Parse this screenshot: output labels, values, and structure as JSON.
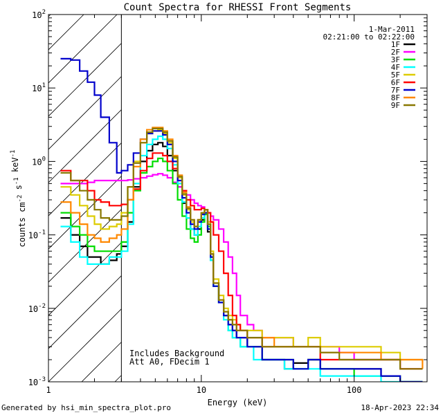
{
  "chart_data": {
    "type": "line",
    "title": "Count Spectra for RHESSI Front Segments",
    "xlabel": "Energy (keV)",
    "ylabel": "counts cm^-2 s^-1 keV^-1",
    "xscale": "log",
    "yscale": "log",
    "xlim": [
      1,
      300
    ],
    "ylim": [
      0.001,
      100
    ],
    "x_tick_labels": [
      "1",
      "10",
      "100"
    ],
    "y_tick_labels": [
      "10^-3",
      "10^-2",
      "10^-1",
      "10^0",
      "10^1",
      "10^2"
    ],
    "date": "1-Mar-2011",
    "time_range": "02:21:00 to 02:22:00",
    "shaded_region_keV": [
      1,
      3
    ],
    "annotations": [
      "Includes Background",
      "Att A0, FDecim 1"
    ],
    "series": [
      {
        "name": "1F",
        "color": "#000000",
        "x": [
          1.2,
          1.4,
          1.6,
          1.8,
          2.0,
          2.2,
          2.5,
          2.8,
          3.0,
          3.3,
          3.6,
          4.0,
          4.4,
          4.8,
          5.2,
          5.6,
          6.0,
          6.5,
          7.0,
          7.5,
          8.0,
          8.5,
          9.0,
          9.5,
          10.0,
          10.5,
          11.0,
          11.5,
          12.0,
          13.0,
          14.0,
          15.0,
          16.0,
          17.0,
          18.0,
          20.0,
          22.0,
          25.0,
          30.0,
          35.0,
          40.0,
          50.0,
          60.0,
          80.0,
          100.0,
          150.0,
          200.0,
          280.0
        ],
        "values": [
          0.17,
          0.1,
          0.07,
          0.05,
          0.05,
          0.04,
          0.045,
          0.055,
          0.07,
          0.15,
          0.45,
          1.0,
          1.4,
          1.7,
          1.8,
          1.6,
          1.2,
          0.75,
          0.45,
          0.27,
          0.17,
          0.12,
          0.1,
          0.12,
          0.16,
          0.2,
          0.11,
          0.045,
          0.02,
          0.012,
          0.008,
          0.006,
          0.005,
          0.004,
          0.004,
          0.003,
          0.003,
          0.002,
          0.002,
          0.0015,
          0.0018,
          0.002,
          0.0015,
          0.0015,
          0.0015,
          0.0012,
          0.001,
          0.001
        ]
      },
      {
        "name": "2F",
        "color": "#ff00ff",
        "x": [
          1.2,
          1.4,
          1.6,
          1.8,
          2.0,
          2.2,
          2.5,
          2.8,
          3.0,
          3.3,
          3.6,
          4.0,
          4.4,
          4.8,
          5.2,
          5.6,
          6.0,
          6.5,
          7.0,
          7.5,
          8.0,
          8.5,
          9.0,
          9.5,
          10.0,
          10.5,
          11.0,
          11.5,
          12.0,
          13.0,
          14.0,
          15.0,
          16.0,
          17.0,
          18.0,
          20.0,
          22.0,
          25.0,
          30.0,
          35.0,
          40.0,
          50.0,
          60.0,
          80.0,
          100.0,
          150.0,
          200.0,
          280.0
        ],
        "values": [
          0.5,
          0.5,
          0.5,
          0.52,
          0.55,
          0.55,
          0.55,
          0.55,
          0.55,
          0.56,
          0.58,
          0.6,
          0.63,
          0.66,
          0.68,
          0.65,
          0.6,
          0.52,
          0.45,
          0.4,
          0.35,
          0.3,
          0.27,
          0.25,
          0.24,
          0.22,
          0.2,
          0.18,
          0.16,
          0.12,
          0.08,
          0.05,
          0.03,
          0.015,
          0.008,
          0.006,
          0.005,
          0.004,
          0.004,
          0.004,
          0.003,
          0.003,
          0.003,
          0.0025,
          0.002,
          0.002,
          0.0015,
          0.0015
        ]
      },
      {
        "name": "3F",
        "color": "#00dd00",
        "x": [
          1.2,
          1.4,
          1.6,
          1.8,
          2.0,
          2.2,
          2.5,
          2.8,
          3.0,
          3.3,
          3.6,
          4.0,
          4.4,
          4.8,
          5.2,
          5.6,
          6.0,
          6.5,
          7.0,
          7.5,
          8.0,
          8.5,
          9.0,
          9.5,
          10.0,
          10.5,
          11.0,
          11.5,
          12.0,
          13.0,
          14.0,
          15.0,
          16.0,
          17.0,
          18.0,
          20.0,
          22.0,
          25.0,
          30.0,
          35.0,
          40.0,
          50.0,
          60.0,
          80.0,
          100.0,
          150.0,
          200.0,
          280.0
        ],
        "values": [
          0.2,
          0.13,
          0.1,
          0.07,
          0.06,
          0.06,
          0.06,
          0.06,
          0.08,
          0.2,
          0.4,
          0.7,
          0.85,
          1.0,
          1.1,
          1.0,
          0.75,
          0.5,
          0.3,
          0.18,
          0.12,
          0.09,
          0.08,
          0.1,
          0.15,
          0.19,
          0.13,
          0.05,
          0.02,
          0.012,
          0.008,
          0.005,
          0.004,
          0.004,
          0.003,
          0.003,
          0.003,
          0.002,
          0.002,
          0.002,
          0.0015,
          0.002,
          0.0015,
          0.0015,
          0.0012,
          0.0012,
          0.001,
          0.001
        ]
      },
      {
        "name": "4F",
        "color": "#00ffff",
        "x": [
          1.2,
          1.4,
          1.6,
          1.8,
          2.0,
          2.2,
          2.5,
          2.8,
          3.0,
          3.3,
          3.6,
          4.0,
          4.4,
          4.8,
          5.2,
          5.6,
          6.0,
          6.5,
          7.0,
          7.5,
          8.0,
          8.5,
          9.0,
          9.5,
          10.0,
          10.5,
          11.0,
          11.5,
          12.0,
          13.0,
          14.0,
          15.0,
          16.0,
          17.0,
          18.0,
          20.0,
          22.0,
          25.0,
          30.0,
          35.0,
          40.0,
          50.0,
          60.0,
          80.0,
          100.0,
          150.0,
          200.0,
          280.0
        ],
        "values": [
          0.13,
          0.08,
          0.05,
          0.04,
          0.04,
          0.04,
          0.05,
          0.05,
          0.06,
          0.14,
          0.5,
          1.2,
          1.7,
          2.0,
          2.2,
          2.0,
          1.5,
          0.9,
          0.5,
          0.28,
          0.17,
          0.12,
          0.1,
          0.13,
          0.17,
          0.2,
          0.12,
          0.045,
          0.02,
          0.012,
          0.007,
          0.005,
          0.004,
          0.004,
          0.003,
          0.003,
          0.002,
          0.002,
          0.002,
          0.0015,
          0.0015,
          0.0015,
          0.0012,
          0.0012,
          0.0012,
          0.001,
          0.001,
          0.001
        ]
      },
      {
        "name": "5F",
        "color": "#ddcc00",
        "x": [
          1.2,
          1.4,
          1.6,
          1.8,
          2.0,
          2.2,
          2.5,
          2.8,
          3.0,
          3.3,
          3.6,
          4.0,
          4.4,
          4.8,
          5.2,
          5.6,
          6.0,
          6.5,
          7.0,
          7.5,
          8.0,
          8.5,
          9.0,
          9.5,
          10.0,
          10.5,
          11.0,
          11.5,
          12.0,
          13.0,
          14.0,
          15.0,
          16.0,
          17.0,
          18.0,
          20.0,
          22.0,
          25.0,
          30.0,
          35.0,
          40.0,
          50.0,
          60.0,
          80.0,
          100.0,
          150.0,
          200.0,
          280.0
        ],
        "values": [
          0.45,
          0.35,
          0.25,
          0.18,
          0.14,
          0.12,
          0.13,
          0.14,
          0.2,
          0.45,
          1.0,
          1.8,
          2.4,
          2.6,
          2.7,
          2.4,
          1.8,
          1.1,
          0.6,
          0.35,
          0.22,
          0.15,
          0.13,
          0.16,
          0.2,
          0.22,
          0.15,
          0.06,
          0.025,
          0.015,
          0.01,
          0.008,
          0.007,
          0.006,
          0.005,
          0.005,
          0.005,
          0.004,
          0.004,
          0.004,
          0.003,
          0.004,
          0.003,
          0.003,
          0.003,
          0.0025,
          0.002,
          0.002
        ]
      },
      {
        "name": "6F",
        "color": "#ff0000",
        "x": [
          1.2,
          1.4,
          1.6,
          1.8,
          2.0,
          2.2,
          2.5,
          2.8,
          3.0,
          3.3,
          3.6,
          4.0,
          4.4,
          4.8,
          5.2,
          5.6,
          6.0,
          6.5,
          7.0,
          7.5,
          8.0,
          8.5,
          9.0,
          9.5,
          10.0,
          10.5,
          11.0,
          11.5,
          12.0,
          13.0,
          14.0,
          15.0,
          16.0,
          17.0,
          18.0,
          20.0,
          22.0,
          25.0,
          30.0,
          35.0,
          40.0,
          50.0,
          60.0,
          80.0,
          100.0,
          150.0,
          200.0,
          280.0
        ],
        "values": [
          0.75,
          0.55,
          0.55,
          0.4,
          0.3,
          0.28,
          0.25,
          0.25,
          0.26,
          0.3,
          0.42,
          0.75,
          1.1,
          1.3,
          1.3,
          1.2,
          1.0,
          0.8,
          0.55,
          0.4,
          0.3,
          0.25,
          0.22,
          0.22,
          0.23,
          0.22,
          0.2,
          0.15,
          0.1,
          0.06,
          0.03,
          0.015,
          0.008,
          0.006,
          0.005,
          0.004,
          0.004,
          0.003,
          0.003,
          0.003,
          0.003,
          0.003,
          0.002,
          0.002,
          0.002,
          0.002,
          0.0015,
          0.0015
        ]
      },
      {
        "name": "7F",
        "color": "#0000cc",
        "x": [
          1.2,
          1.4,
          1.6,
          1.8,
          2.0,
          2.2,
          2.5,
          2.8,
          3.0,
          3.3,
          3.6,
          4.0,
          4.4,
          4.8,
          5.2,
          5.6,
          6.0,
          6.5,
          7.0,
          7.5,
          8.0,
          8.5,
          9.0,
          9.5,
          10.0,
          10.5,
          11.0,
          11.5,
          12.0,
          13.0,
          14.0,
          15.0,
          16.0,
          17.0,
          18.0,
          20.0,
          22.0,
          25.0,
          30.0,
          35.0,
          40.0,
          50.0,
          60.0,
          80.0,
          100.0,
          150.0,
          200.0,
          280.0
        ],
        "values": [
          25,
          24,
          17,
          12,
          8,
          4,
          1.8,
          0.7,
          0.75,
          0.9,
          1.3,
          2.0,
          2.4,
          2.6,
          2.6,
          2.3,
          1.7,
          1.0,
          0.55,
          0.32,
          0.2,
          0.14,
          0.12,
          0.15,
          0.19,
          0.2,
          0.12,
          0.05,
          0.02,
          0.012,
          0.008,
          0.006,
          0.005,
          0.004,
          0.004,
          0.003,
          0.003,
          0.002,
          0.002,
          0.002,
          0.0015,
          0.002,
          0.0015,
          0.0015,
          0.0015,
          0.0012,
          0.001,
          0.001
        ]
      },
      {
        "name": "8F",
        "color": "#ff8800",
        "x": [
          1.2,
          1.4,
          1.6,
          1.8,
          2.0,
          2.2,
          2.5,
          2.8,
          3.0,
          3.3,
          3.6,
          4.0,
          4.4,
          4.8,
          5.2,
          5.6,
          6.0,
          6.5,
          7.0,
          7.5,
          8.0,
          8.5,
          9.0,
          9.5,
          10.0,
          10.5,
          11.0,
          11.5,
          12.0,
          13.0,
          14.0,
          15.0,
          16.0,
          17.0,
          18.0,
          20.0,
          22.0,
          25.0,
          30.0,
          35.0,
          40.0,
          50.0,
          60.0,
          80.0,
          100.0,
          150.0,
          200.0,
          280.0
        ],
        "values": [
          0.28,
          0.2,
          0.14,
          0.1,
          0.09,
          0.08,
          0.09,
          0.1,
          0.12,
          0.3,
          0.85,
          2.0,
          2.7,
          2.9,
          2.9,
          2.6,
          2.0,
          1.2,
          0.65,
          0.38,
          0.24,
          0.16,
          0.13,
          0.16,
          0.2,
          0.22,
          0.14,
          0.055,
          0.022,
          0.013,
          0.009,
          0.007,
          0.006,
          0.005,
          0.005,
          0.004,
          0.004,
          0.004,
          0.003,
          0.003,
          0.003,
          0.003,
          0.0025,
          0.0025,
          0.0025,
          0.002,
          0.002,
          0.0015
        ]
      },
      {
        "name": "9F",
        "color": "#887700",
        "x": [
          1.2,
          1.4,
          1.6,
          1.8,
          2.0,
          2.2,
          2.5,
          2.8,
          3.0,
          3.3,
          3.6,
          4.0,
          4.4,
          4.8,
          5.2,
          5.6,
          6.0,
          6.5,
          7.0,
          7.5,
          8.0,
          8.5,
          9.0,
          9.5,
          10.0,
          10.5,
          11.0,
          11.5,
          12.0,
          13.0,
          14.0,
          15.0,
          16.0,
          17.0,
          18.0,
          20.0,
          22.0,
          25.0,
          30.0,
          35.0,
          40.0,
          50.0,
          60.0,
          80.0,
          100.0,
          150.0,
          200.0,
          280.0
        ],
        "values": [
          0.7,
          0.55,
          0.4,
          0.3,
          0.22,
          0.17,
          0.16,
          0.16,
          0.18,
          0.45,
          0.95,
          1.8,
          2.5,
          2.8,
          2.8,
          2.5,
          1.9,
          1.15,
          0.62,
          0.36,
          0.23,
          0.16,
          0.13,
          0.16,
          0.2,
          0.22,
          0.14,
          0.055,
          0.022,
          0.013,
          0.009,
          0.007,
          0.006,
          0.005,
          0.005,
          0.004,
          0.004,
          0.003,
          0.003,
          0.003,
          0.003,
          0.003,
          0.0025,
          0.002,
          0.002,
          0.002,
          0.0015,
          0.0015
        ]
      }
    ]
  },
  "footer": {
    "generated_by": "Generated by hsi_min_spectra_plot.pro",
    "timestamp": "18-Apr-2023 22:34"
  }
}
